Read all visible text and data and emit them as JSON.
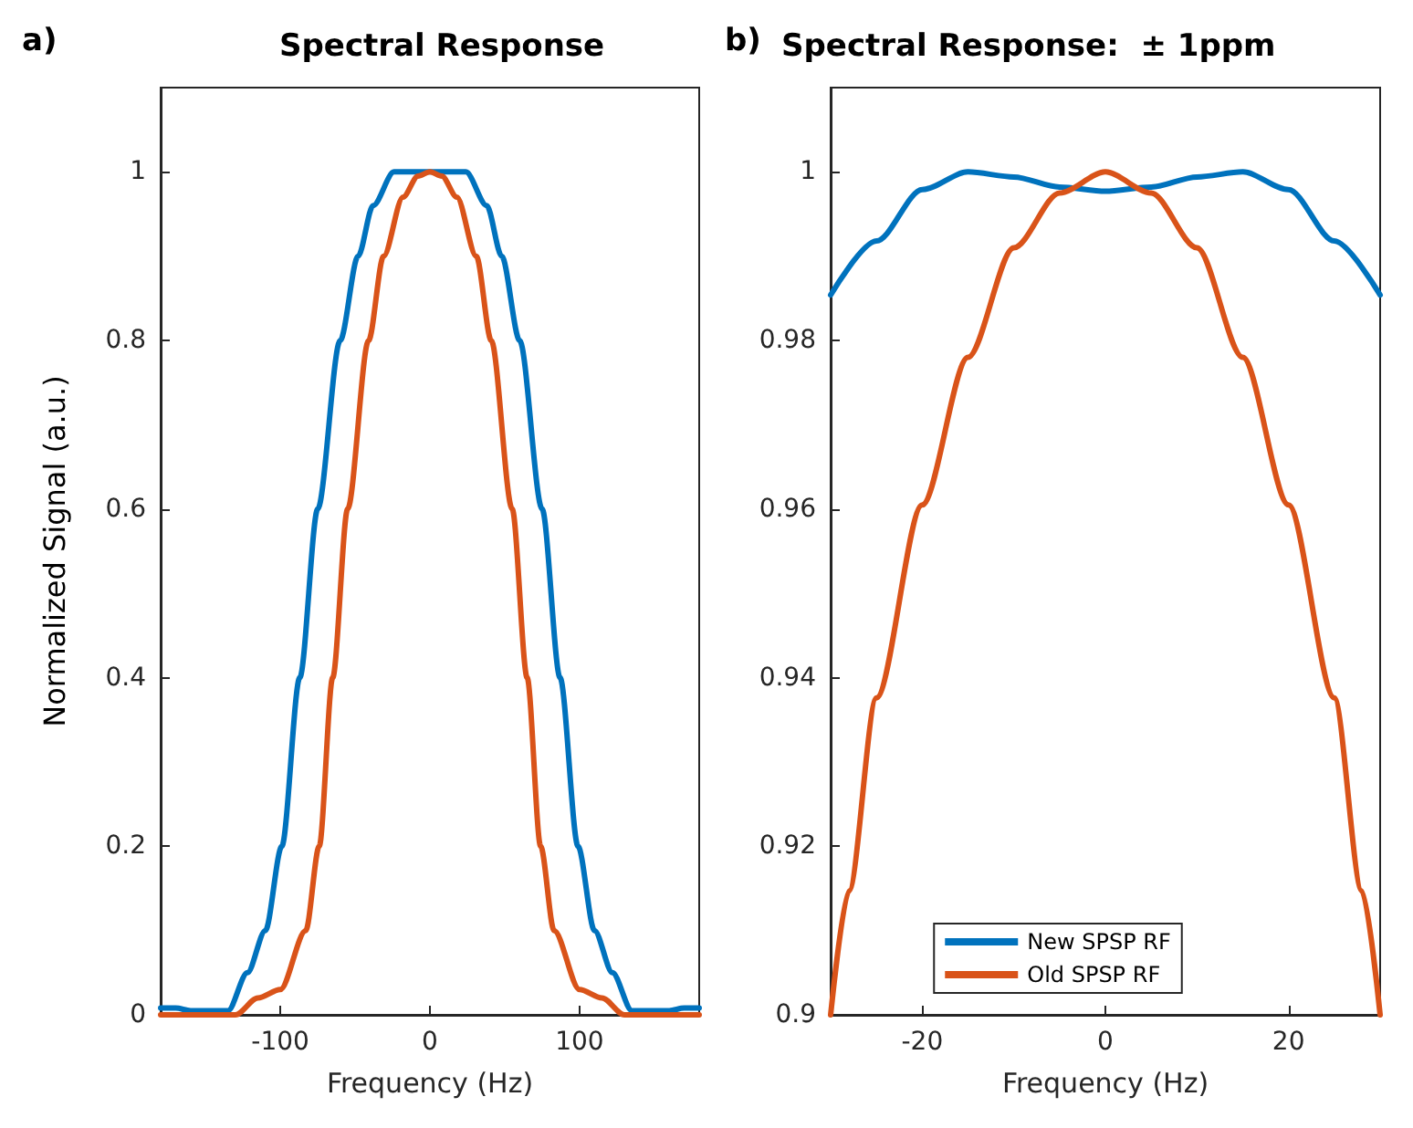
{
  "chart_data": [
    {
      "type": "line",
      "title": "Spectral Response",
      "annotations": [
        "a)"
      ],
      "xlabel": "Frequency (Hz)",
      "ylabel": "Normalized Signal (a.u.)",
      "xlim": [
        -180,
        180
      ],
      "ylim": [
        0,
        1.1
      ],
      "xticks": [
        -100,
        0,
        100
      ],
      "yticks": [
        0,
        0.2,
        0.4,
        0.6,
        0.8,
        1
      ],
      "grid": false,
      "legend": false,
      "marker": "none",
      "line_style": "solid",
      "series": [
        {
          "color": "#0072bd",
          "x": [
            -180,
            -170,
            -160,
            -150,
            -140,
            -135,
            -122,
            -110,
            -99,
            -87,
            -75,
            -60,
            -48,
            -38,
            -24,
            0,
            24,
            38,
            48,
            60,
            75,
            87,
            99,
            110,
            122,
            135,
            140,
            150,
            160,
            170,
            180
          ],
          "values": [
            0.008,
            0.008,
            0.005,
            0.005,
            0.005,
            0.005,
            0.05,
            0.1,
            0.2,
            0.4,
            0.6,
            0.8,
            0.9,
            0.96,
            1,
            1,
            1,
            0.96,
            0.9,
            0.8,
            0.6,
            0.4,
            0.2,
            0.1,
            0.05,
            0.005,
            0.005,
            0.005,
            0.005,
            0.008,
            0.008
          ]
        },
        {
          "color": "#d95319",
          "x": [
            -180,
            -160,
            -140,
            -130,
            -115,
            -100,
            -83,
            -74,
            -65,
            -55,
            -41,
            -31,
            -18,
            -8,
            0,
            8,
            18,
            31,
            41,
            55,
            65,
            74,
            83,
            100,
            115,
            130,
            140,
            160,
            180
          ],
          "values": [
            0,
            0,
            0,
            0,
            0.02,
            0.03,
            0.1,
            0.2,
            0.4,
            0.6,
            0.8,
            0.9,
            0.97,
            0.995,
            1,
            0.995,
            0.97,
            0.9,
            0.8,
            0.6,
            0.4,
            0.2,
            0.1,
            0.03,
            0.02,
            0,
            0,
            0,
            0
          ]
        }
      ]
    },
    {
      "type": "line",
      "title": "Spectral Response:  ± 1ppm",
      "annotations": [
        "b)"
      ],
      "xlabel": "Frequency (Hz)",
      "xlim": [
        -30,
        30
      ],
      "ylim": [
        0.9,
        1.01
      ],
      "xticks": [
        -20,
        0,
        20
      ],
      "yticks": [
        0.9,
        0.92,
        0.94,
        0.96,
        0.98,
        1
      ],
      "grid": false,
      "legend": "bottom",
      "marker": "none",
      "line_style": "solid",
      "series": [
        {
          "name": "New SPSP RF",
          "color": "#0072bd",
          "x": [
            -30,
            -25,
            -20,
            -15,
            -10,
            -5,
            0,
            5,
            10,
            15,
            20,
            25,
            30
          ],
          "values": [
            0.9854,
            0.9918,
            0.9979,
            1,
            0.9994,
            0.9982,
            0.9977,
            0.9982,
            0.9994,
            1,
            0.9979,
            0.9918,
            0.9854
          ]
        },
        {
          "name": "Old SPSP RF",
          "color": "#d95319",
          "x": [
            -30,
            -28,
            -25,
            -20,
            -15,
            -10,
            -5,
            0,
            5,
            10,
            15,
            20,
            25,
            28,
            30
          ],
          "values": [
            0.9,
            0.9147,
            0.9376,
            0.9605,
            0.978,
            0.991,
            0.9975,
            1,
            0.9975,
            0.991,
            0.978,
            0.9605,
            0.9376,
            0.9147,
            0.9
          ]
        }
      ]
    }
  ]
}
